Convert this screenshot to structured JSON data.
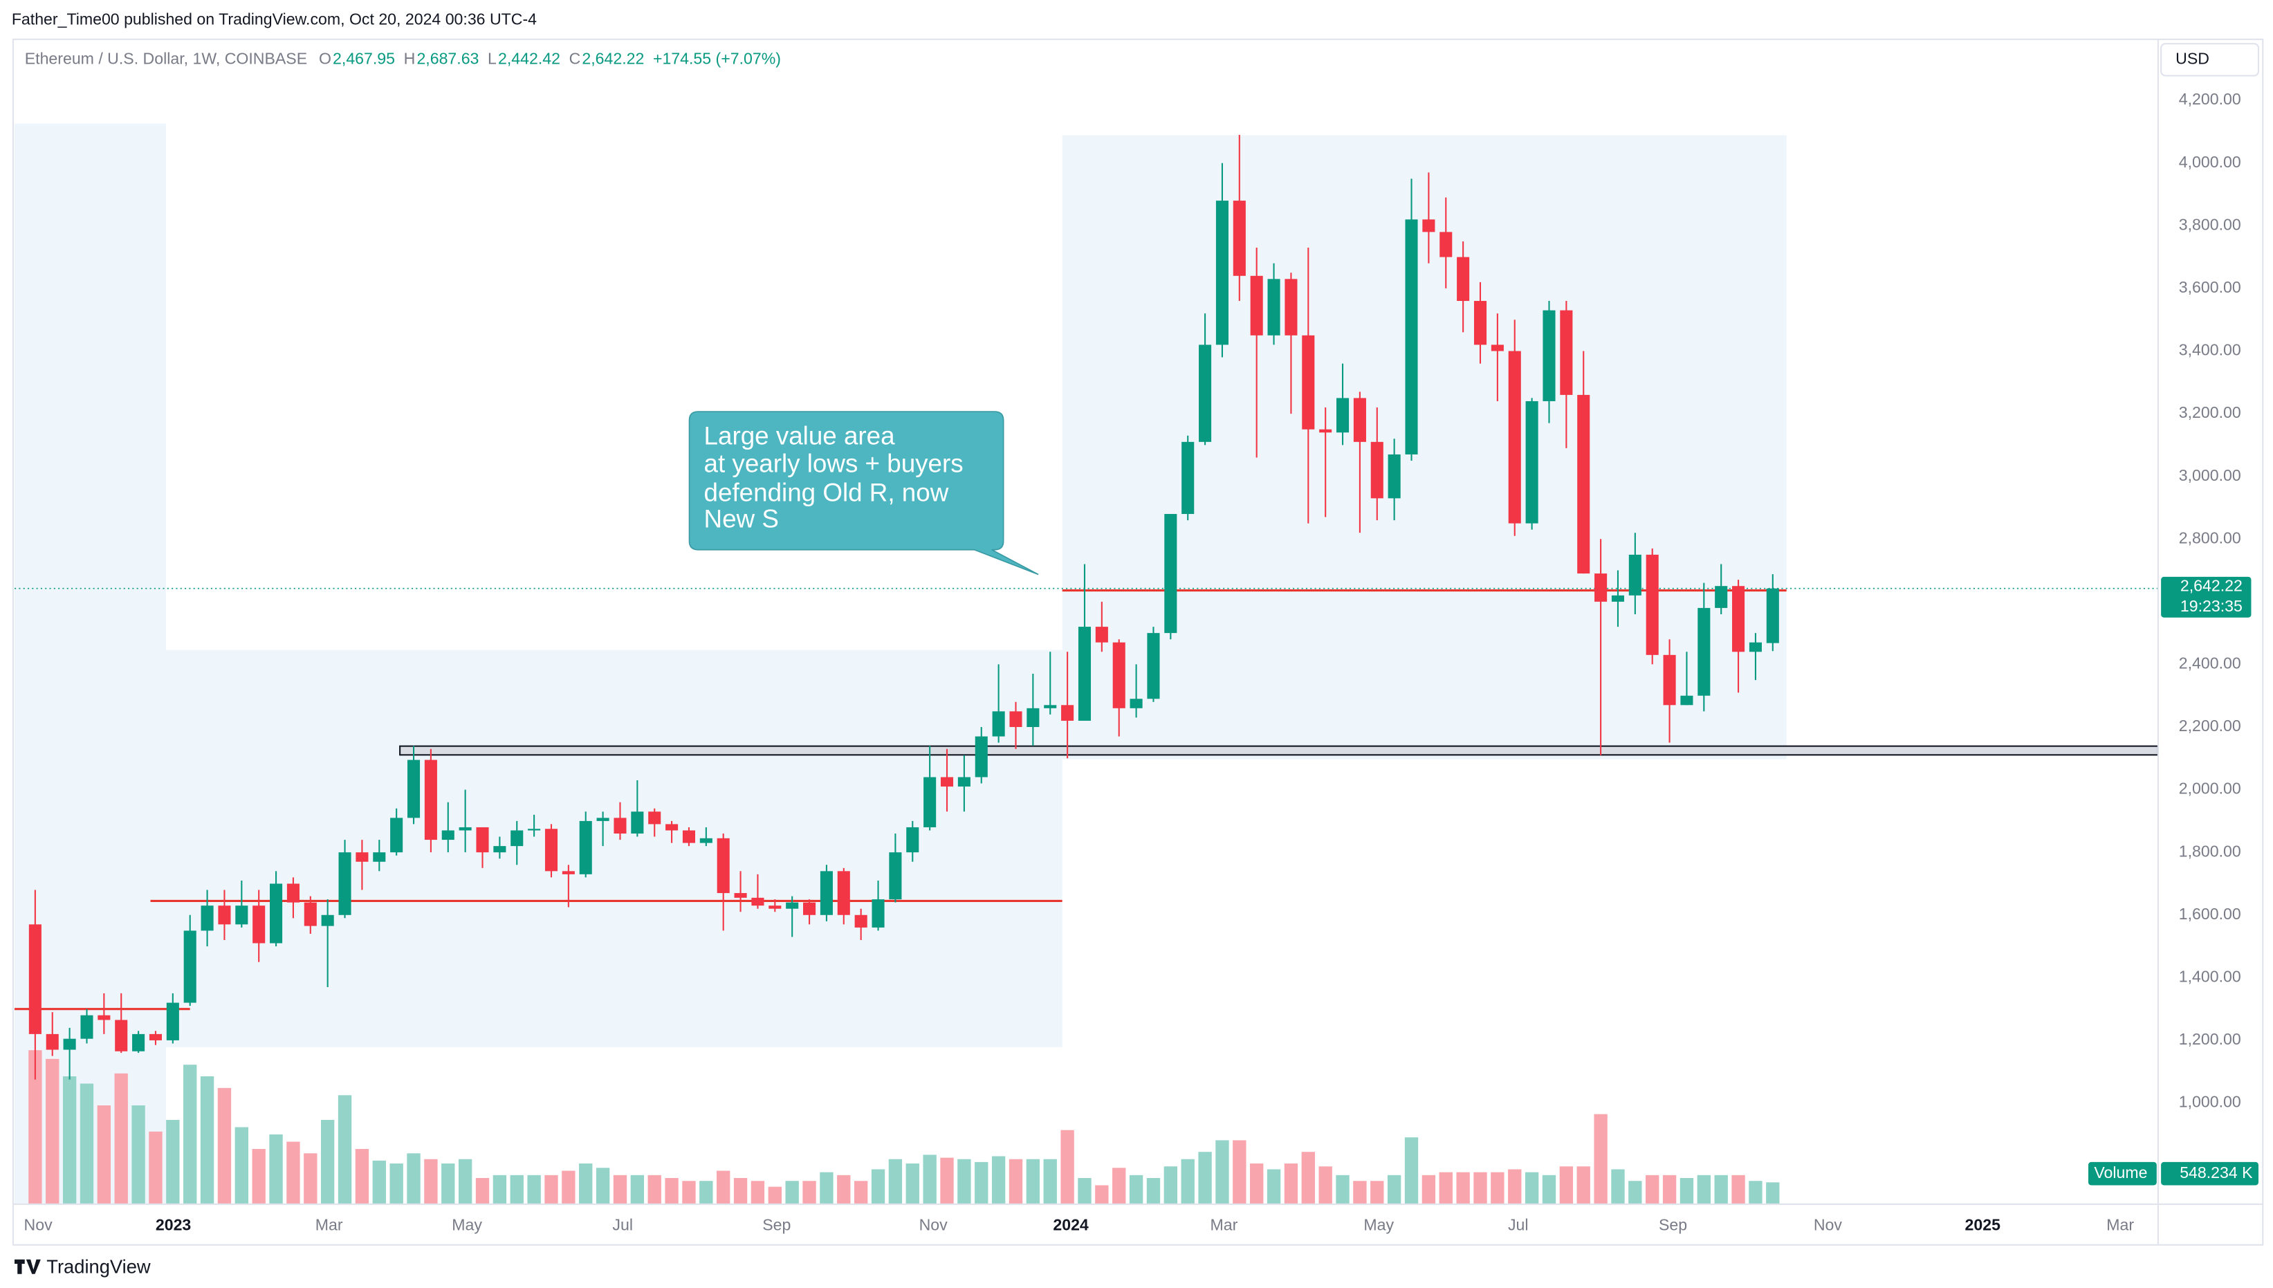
{
  "header": {
    "published": "Father_Time00 published on TradingView.com, Oct 20, 2024 00:36 UTC-4",
    "symbol": "Ethereum / U.S. Dollar, 1W, COINBASE",
    "ohlc": [
      {
        "key": "O",
        "value": "2,467.95"
      },
      {
        "key": "H",
        "value": "2,687.63"
      },
      {
        "key": "L",
        "value": "2,442.42"
      },
      {
        "key": "C",
        "value": "2,642.22"
      }
    ],
    "change": "+174.55 (+7.07%)",
    "currency": "USD"
  },
  "chart_data": {
    "type": "candlestick",
    "colors": {
      "up": "#089981",
      "down": "#f23645",
      "volume_up": "#93d3c8",
      "volume_down": "#f8a5ad"
    },
    "open": [
      1570,
      1220,
      1170,
      1205,
      1280,
      1265,
      1165,
      1220,
      1200,
      1320,
      1550,
      1630,
      1570,
      1630,
      1510,
      1700,
      1640,
      1565,
      1600,
      1800,
      1770,
      1800,
      1910,
      2095,
      1840,
      1870,
      1880,
      1800,
      1820,
      1870,
      1875,
      1740,
      1730,
      1900,
      1910,
      1860,
      1930,
      1890,
      1870,
      1830,
      1845,
      1670,
      1655,
      1630,
      1620,
      1640,
      1600,
      1740,
      1600,
      1560,
      1650,
      1800,
      1880,
      2040,
      2010,
      2040,
      2170,
      2250,
      2200,
      2260,
      2270,
      2220,
      2520,
      2470,
      2260,
      2290,
      2500,
      2880,
      3110,
      3420,
      3880,
      3640,
      3450,
      3630,
      3450,
      3150,
      3140,
      3250,
      3110,
      2930,
      3070,
      3820,
      3780,
      3700,
      3560,
      3420,
      3400,
      2850,
      3240,
      3530,
      3260,
      2690,
      2600,
      2620,
      2750,
      2430,
      2270,
      2300,
      2580,
      2650,
      2440,
      2467.95
    ],
    "high": [
      1680,
      1290,
      1240,
      1300,
      1350,
      1350,
      1230,
      1230,
      1350,
      1600,
      1680,
      1680,
      1710,
      1680,
      1740,
      1720,
      1660,
      1650,
      1840,
      1840,
      1840,
      1940,
      2140,
      2130,
      1960,
      2000,
      1880,
      1850,
      1900,
      1920,
      1890,
      1760,
      1930,
      1930,
      1960,
      2030,
      1940,
      1900,
      1880,
      1880,
      1860,
      1740,
      1730,
      1650,
      1660,
      1650,
      1760,
      1750,
      1620,
      1710,
      1860,
      1900,
      2140,
      2130,
      2110,
      2200,
      2400,
      2280,
      2370,
      2440,
      2440,
      2720,
      2600,
      2480,
      2400,
      2520,
      2880,
      3130,
      3520,
      4000,
      4090,
      3730,
      3680,
      3650,
      3730,
      3220,
      3360,
      3270,
      3220,
      3120,
      3950,
      3970,
      3890,
      3750,
      3620,
      3520,
      3500,
      3250,
      3560,
      3560,
      3400,
      2800,
      2700,
      2820,
      2770,
      2480,
      2440,
      2660,
      2720,
      2670,
      2500,
      2687.63
    ],
    "low": [
      1075,
      1150,
      1075,
      1190,
      1220,
      1160,
      1160,
      1185,
      1190,
      1310,
      1500,
      1520,
      1560,
      1450,
      1500,
      1590,
      1540,
      1370,
      1590,
      1680,
      1740,
      1790,
      1890,
      1800,
      1800,
      1800,
      1750,
      1780,
      1760,
      1850,
      1720,
      1625,
      1720,
      1820,
      1840,
      1850,
      1850,
      1830,
      1820,
      1820,
      1550,
      1610,
      1620,
      1610,
      1530,
      1570,
      1580,
      1570,
      1520,
      1550,
      1640,
      1770,
      1870,
      1930,
      1930,
      2020,
      2150,
      2130,
      2140,
      2240,
      2100,
      2220,
      2440,
      2170,
      2230,
      2280,
      2480,
      2860,
      3100,
      3380,
      3560,
      3060,
      3420,
      3200,
      2850,
      2870,
      3100,
      2820,
      2860,
      2860,
      3050,
      3680,
      3600,
      3460,
      3360,
      3240,
      2810,
      2830,
      3170,
      3090,
      2690,
      2110,
      2520,
      2560,
      2400,
      2150,
      2270,
      2250,
      2560,
      2310,
      2350,
      2442.42
    ],
    "close": [
      1220,
      1170,
      1205,
      1280,
      1265,
      1165,
      1220,
      1200,
      1320,
      1550,
      1630,
      1570,
      1630,
      1510,
      1700,
      1640,
      1565,
      1600,
      1800,
      1770,
      1800,
      1910,
      2095,
      1840,
      1870,
      1880,
      1800,
      1820,
      1870,
      1875,
      1740,
      1730,
      1900,
      1910,
      1860,
      1930,
      1890,
      1870,
      1830,
      1845,
      1670,
      1655,
      1630,
      1620,
      1640,
      1600,
      1740,
      1600,
      1560,
      1650,
      1800,
      1880,
      2040,
      2010,
      2040,
      2170,
      2250,
      2200,
      2260,
      2270,
      2220,
      2520,
      2470,
      2260,
      2290,
      2500,
      2880,
      3110,
      3420,
      3880,
      3640,
      3450,
      3630,
      3450,
      3150,
      3140,
      3250,
      3110,
      2930,
      3070,
      3820,
      3780,
      3700,
      3560,
      3420,
      3400,
      2850,
      3240,
      3530,
      3260,
      2690,
      2600,
      2620,
      2750,
      2430,
      2270,
      2300,
      2580,
      2650,
      2440,
      2470,
      2642.22
    ],
    "volume": {
      "name": "Volume",
      "value_label": "548.234 K",
      "ylim": [
        0,
        3800
      ],
      "values": [
        3869,
        3650,
        3212,
        3030,
        2482,
        3285,
        2482,
        1825,
        2117,
        3504,
        3212,
        2920,
        1935,
        1387,
        1752,
        1570,
        1278,
        2117,
        2738,
        1387,
        1095,
        1022,
        1278,
        1132,
        1022,
        1132,
        657,
        730,
        730,
        730,
        730,
        840,
        1022,
        913,
        730,
        730,
        730,
        657,
        584,
        584,
        840,
        657,
        584,
        438,
        584,
        584,
        803,
        730,
        584,
        876,
        1132,
        1022,
        1241,
        1168,
        1132,
        1059,
        1205,
        1132,
        1132,
        1132,
        1862,
        657,
        475,
        913,
        730,
        657,
        949,
        1132,
        1314,
        1606,
        1606,
        1022,
        876,
        1022,
        1314,
        949,
        730,
        584,
        584,
        730,
        1679,
        730,
        803,
        803,
        803,
        803,
        876,
        803,
        730,
        949,
        949,
        2263,
        876,
        584,
        730,
        730,
        657,
        730,
        730,
        730,
        584,
        548.234
      ]
    },
    "xlim": [
      -1.2,
      123.4
    ],
    "xticks": [
      {
        "value": 0.17,
        "label": "Nov"
      },
      {
        "value": 8.03,
        "label": "2023"
      },
      {
        "value": 17.08,
        "label": "Mar"
      },
      {
        "value": 25.1,
        "label": "May"
      },
      {
        "value": 34.15,
        "label": "Jul"
      },
      {
        "value": 43.1,
        "label": "Sep"
      },
      {
        "value": 52.2,
        "label": "Nov"
      },
      {
        "value": 60.2,
        "label": "2024"
      },
      {
        "value": 69.1,
        "label": "Mar"
      },
      {
        "value": 78.1,
        "label": "May"
      },
      {
        "value": 86.2,
        "label": "Jul"
      },
      {
        "value": 95.2,
        "label": "Sep"
      },
      {
        "value": 104.2,
        "label": "Nov"
      },
      {
        "value": 113.2,
        "label": "2025"
      },
      {
        "value": 121.2,
        "label": "Mar"
      }
    ],
    "ylim": [
      677,
      4265
    ],
    "yticks": [
      {
        "value": 1000,
        "label": "1,000.00"
      },
      {
        "value": 1200,
        "label": "1,200.00"
      },
      {
        "value": 1400,
        "label": "1,400.00"
      },
      {
        "value": 1600,
        "label": "1,600.00"
      },
      {
        "value": 1800,
        "label": "1,800.00"
      },
      {
        "value": 2000,
        "label": "2,000.00"
      },
      {
        "value": 2200,
        "label": "2,200.00"
      },
      {
        "value": 2400,
        "label": "2,400.00"
      },
      {
        "value": 2600,
        "label": "2,600.00"
      },
      {
        "value": 2800,
        "label": "2,800.00"
      },
      {
        "value": 3000,
        "label": "3,000.00"
      },
      {
        "value": 3200,
        "label": "3,200.00"
      },
      {
        "value": 3400,
        "label": "3,400.00"
      },
      {
        "value": 3600,
        "label": "3,600.00"
      },
      {
        "value": 3800,
        "label": "3,800.00"
      },
      {
        "value": 4000,
        "label": "4,000.00"
      },
      {
        "value": 4200,
        "label": "4,200.00"
      }
    ],
    "grid": false,
    "last_price": {
      "value": 2642.22,
      "label": "2,642.22",
      "countdown": "19:23:35",
      "color": "#089981"
    },
    "zones": [
      {
        "x": [
          -1.2,
          7.6
        ],
        "y": [
          677,
          4126
        ],
        "color": "#eef6fc"
      },
      {
        "x": [
          6.7,
          59.7
        ],
        "y": [
          1178,
          2446
        ],
        "color": "#eef6fc"
      },
      {
        "x": [
          59.7,
          101.8
        ],
        "y": [
          2097,
          4089
        ],
        "color": "#eef6fc"
      }
    ],
    "support_zone": {
      "x": [
        21.2,
        123.4
      ],
      "y": [
        2111,
        2139
      ],
      "color": "#d9dde3"
    },
    "levels": [
      {
        "y": 1645,
        "x": [
          6.7,
          59.7
        ],
        "color": "#e8362f"
      },
      {
        "y": 1300,
        "x": [
          -1.2,
          9
        ],
        "color": "#e8362f"
      },
      {
        "y": 2636,
        "x": [
          59.7,
          101.8
        ],
        "color": "#e8362f"
      }
    ],
    "annotation": {
      "lines": [
        "Large value area",
        "at yearly lows + buyers",
        "defending Old R, now",
        "New S"
      ],
      "color": "#4db6c0"
    }
  },
  "footer": {
    "brand": "TradingView"
  }
}
